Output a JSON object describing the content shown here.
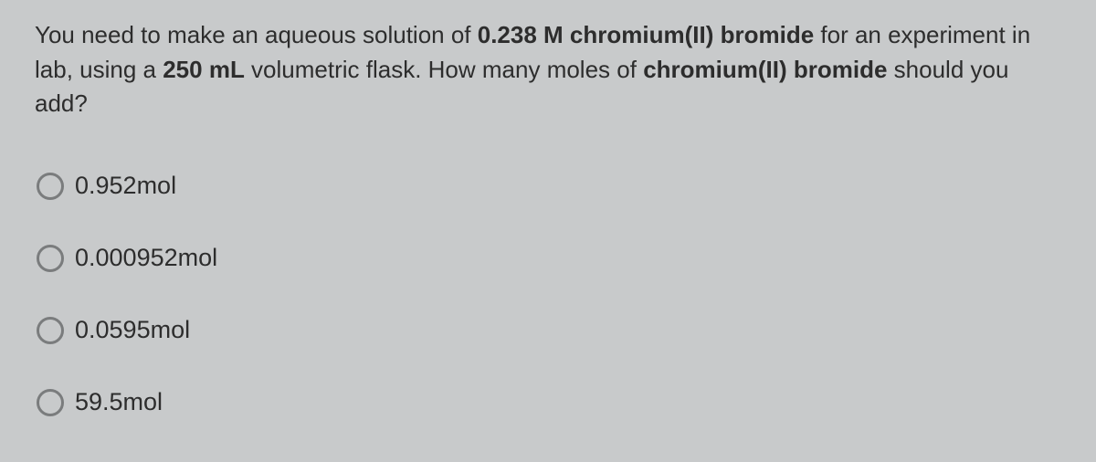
{
  "question": {
    "segments": [
      {
        "text": "You need to make an aqueous solution of ",
        "bold": false
      },
      {
        "text": "0.238 M chromium(II) bromide",
        "bold": true
      },
      {
        "text": " for an experiment in lab, using a ",
        "bold": false
      },
      {
        "text": "250 mL",
        "bold": true
      },
      {
        "text": " volumetric flask. How many moles of ",
        "bold": false
      },
      {
        "text": "chromium(II) bromide",
        "bold": true
      },
      {
        "text": " should you add?",
        "bold": false
      }
    ]
  },
  "options": [
    {
      "label": "0.952mol"
    },
    {
      "label": "0.000952mol"
    },
    {
      "label": "0.0595mol"
    },
    {
      "label": "59.5mol"
    }
  ],
  "styles": {
    "background": "#c8cacb",
    "text_color": "#2d2d2d",
    "radio_border": "#7a7c7d",
    "question_fontsize": 26,
    "option_fontsize": 27
  }
}
